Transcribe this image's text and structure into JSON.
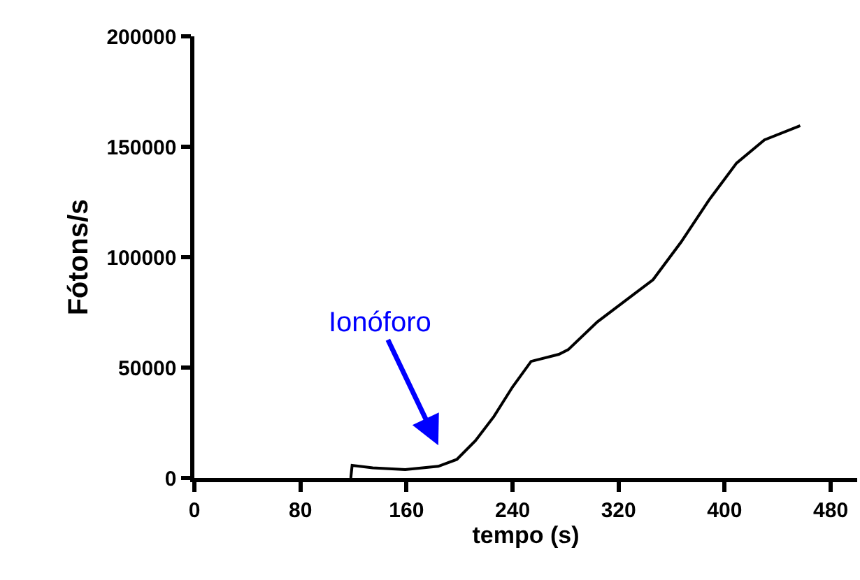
{
  "chart_data": {
    "type": "line",
    "xlabel": "tempo (s)",
    "ylabel": "Fótons/s",
    "x": [
      118,
      119,
      134.5,
      159,
      184,
      198,
      212,
      226,
      240,
      254,
      275,
      282,
      304,
      332,
      346,
      367,
      388,
      409,
      430,
      457
    ],
    "series": [
      {
        "color": "#000000",
        "values": [
          0,
          5700,
          4600,
          3800,
          5300,
          8400,
          16900,
          27900,
          41200,
          52800,
          56000,
          58100,
          70700,
          83400,
          89800,
          106700,
          125700,
          142600,
          153100,
          159500
        ]
      }
    ],
    "annotations": [
      "Ionóforo"
    ],
    "xlim": [
      0,
      500
    ],
    "xticks": [
      0,
      80,
      160,
      240,
      320,
      400,
      480
    ],
    "ylim": [
      0,
      200000
    ],
    "yticks": [
      0,
      50000,
      100000,
      150000,
      200000
    ],
    "marker": "none",
    "line_style": "solid"
  }
}
